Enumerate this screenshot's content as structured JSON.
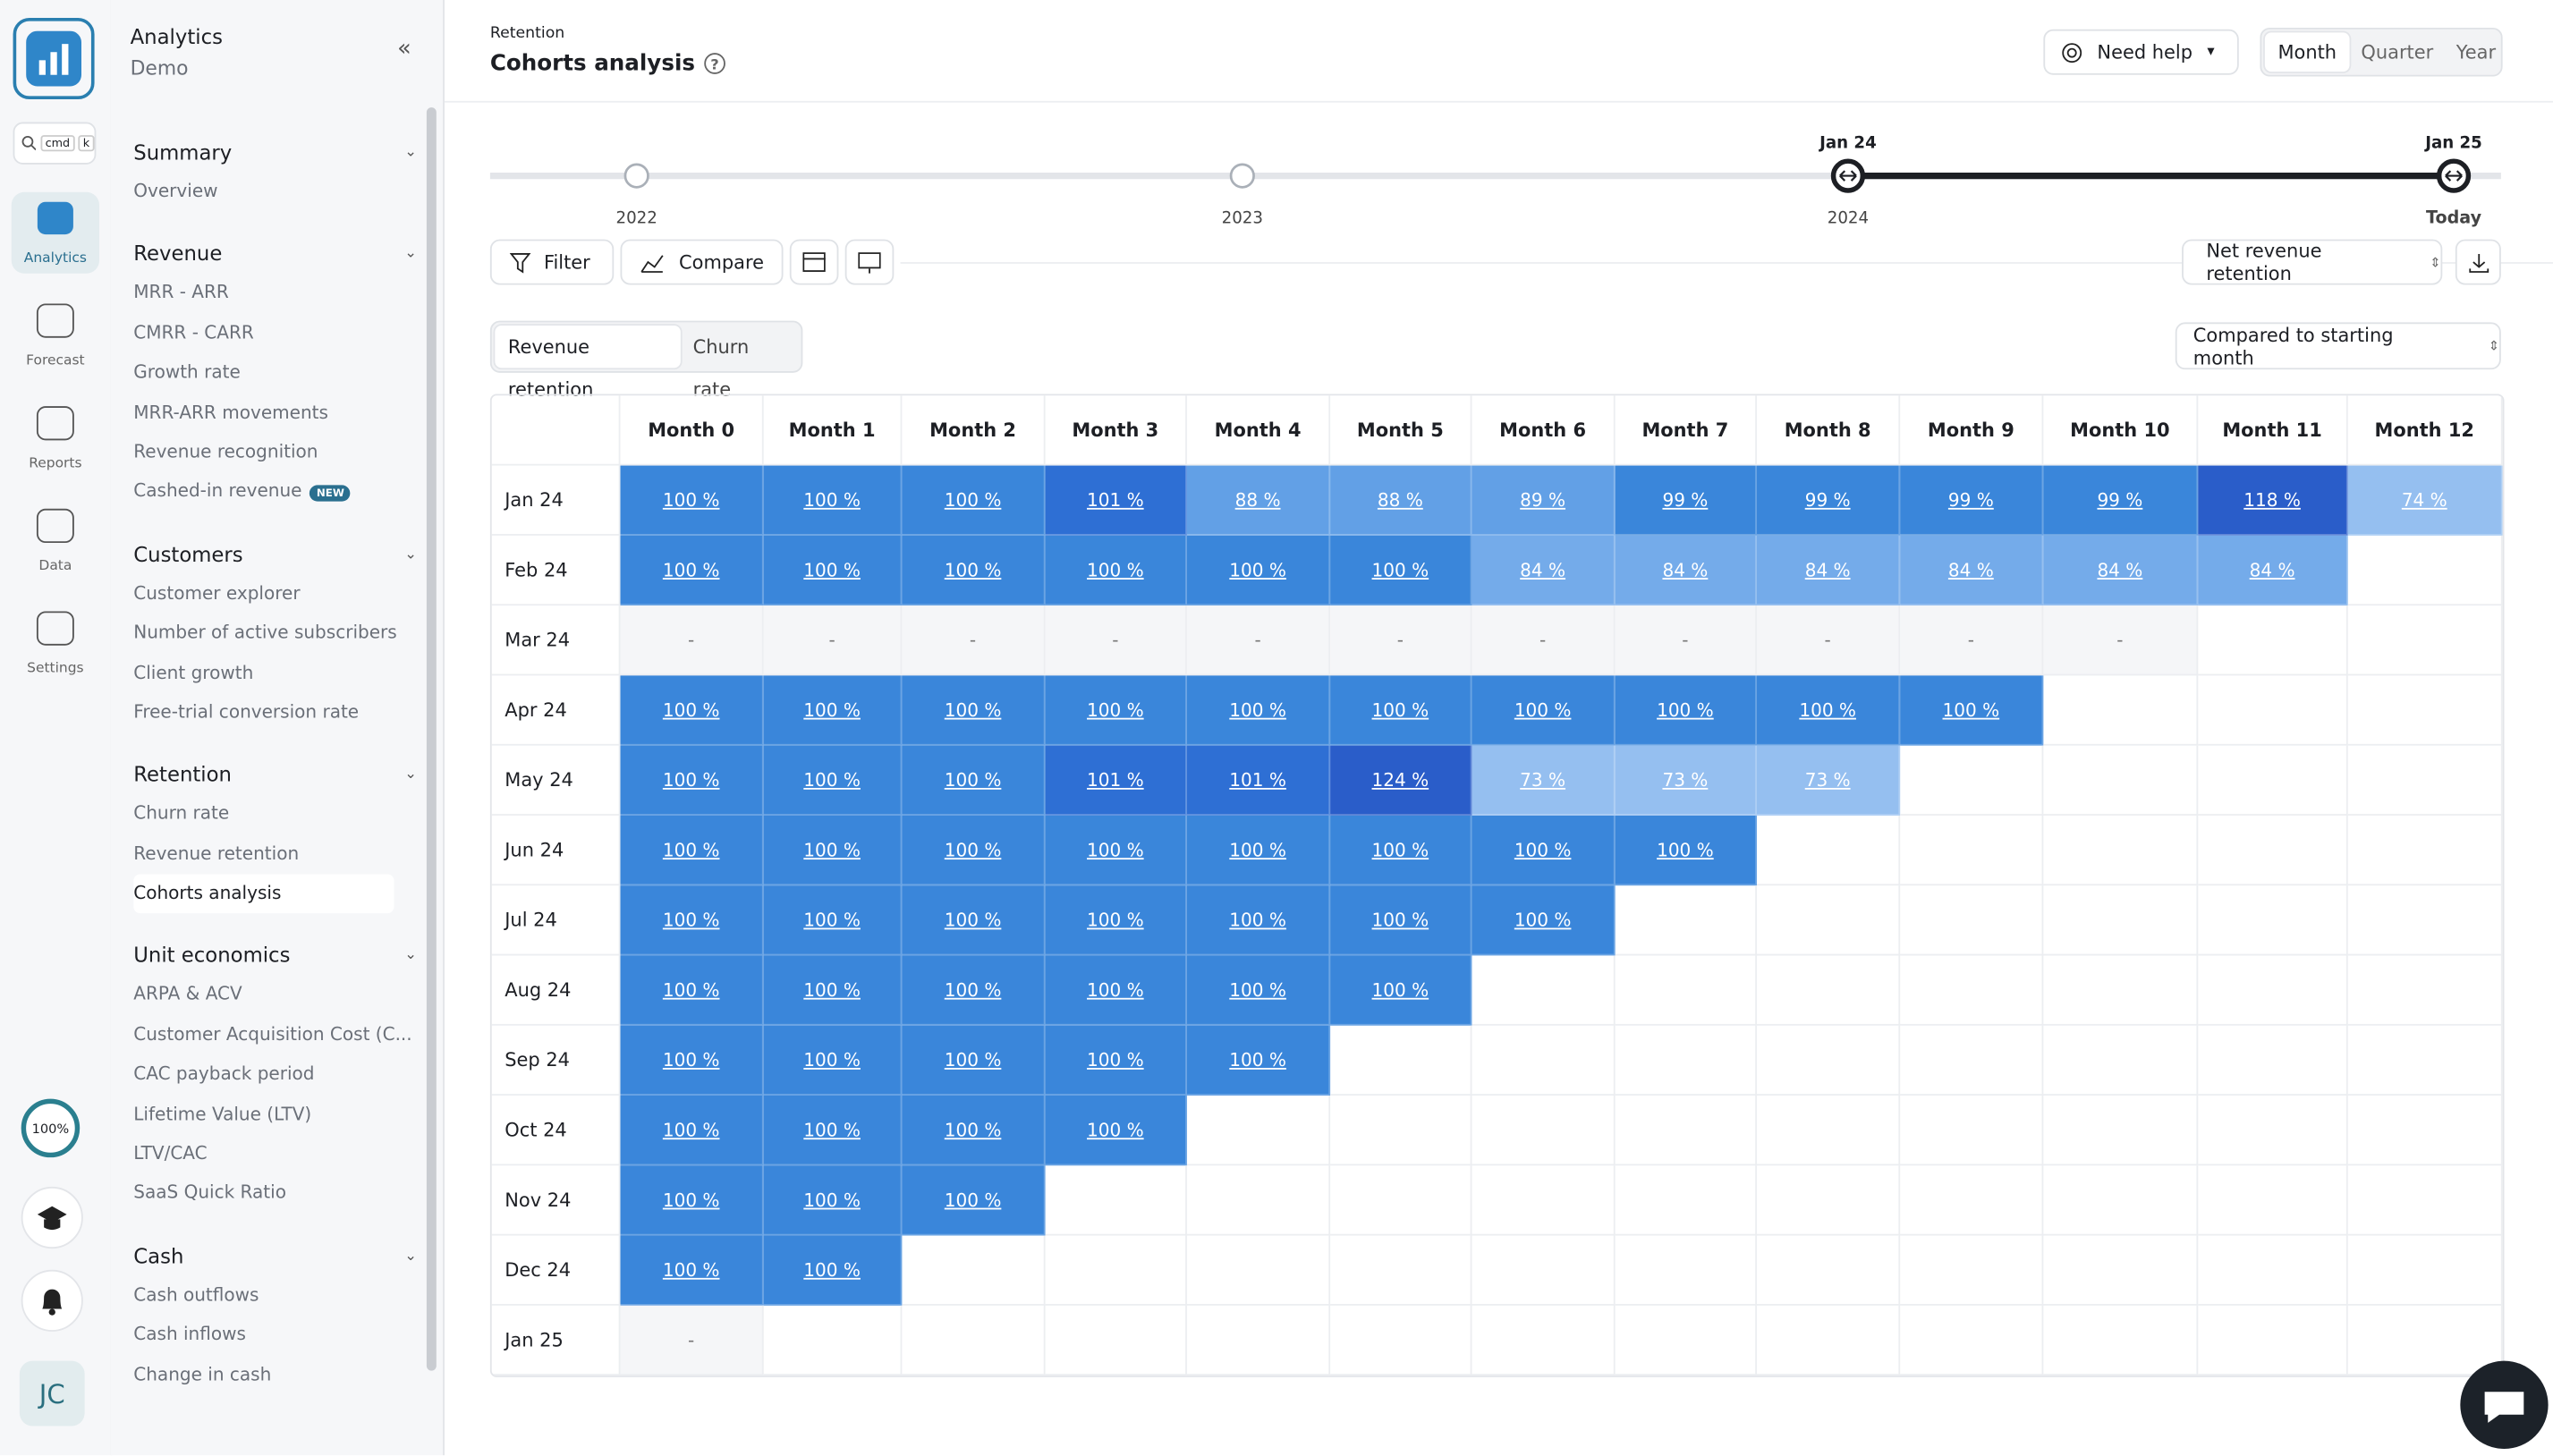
{
  "sidebar": {
    "app": {
      "title": "Analytics",
      "subtitle": "Demo"
    },
    "search_keys": [
      "cmd",
      "k"
    ],
    "rail": [
      "Analytics",
      "Forecast",
      "Reports",
      "Data",
      "Settings"
    ],
    "progress": "100%",
    "avatar": "JC",
    "sections": [
      {
        "title": "Summary",
        "items": [
          "Overview"
        ]
      },
      {
        "title": "Revenue",
        "items": [
          "MRR - ARR",
          "CMRR - CARR",
          "Growth rate",
          "MRR-ARR movements",
          "Revenue recognition",
          "Cashed-in revenue"
        ],
        "badge": "NEW"
      },
      {
        "title": "Customers",
        "items": [
          "Customer explorer",
          "Number of active subscribers",
          "Client growth",
          "Free-trial conversion rate"
        ]
      },
      {
        "title": "Retention",
        "items": [
          "Churn rate",
          "Revenue retention",
          "Cohorts analysis"
        ]
      },
      {
        "title": "Unit economics",
        "items": [
          "ARPA & ACV",
          "Customer Acquisition Cost (C...",
          "CAC payback period",
          "Lifetime Value (LTV)",
          "LTV/CAC",
          "SaaS Quick Ratio"
        ]
      },
      {
        "title": "Cash",
        "items": [
          "Cash outflows",
          "Cash inflows",
          "Change in cash"
        ]
      }
    ]
  },
  "header": {
    "breadcrumb": "Retention",
    "title": "Cohorts analysis",
    "help": "Need help",
    "periods": [
      "Month",
      "Quarter",
      "Year"
    ]
  },
  "timeline": {
    "labels": [
      "2022",
      "2023",
      "2024",
      "Today"
    ],
    "markers": [
      "Jan 24",
      "Jan 25"
    ]
  },
  "toolbar": {
    "filter": "Filter",
    "compare": "Compare",
    "metric": "Net revenue retention"
  },
  "tabs": [
    "Revenue retention",
    "Churn rate"
  ],
  "comparison": "Compared to starting month",
  "table": {
    "columns": [
      "Month 0",
      "Month 1",
      "Month 2",
      "Month 3",
      "Month 4",
      "Month 5",
      "Month 6",
      "Month 7",
      "Month 8",
      "Month 9",
      "Month 10",
      "Month 11",
      "Month 12"
    ],
    "rows": [
      {
        "label": "Jan 24",
        "cells": [
          "100 %",
          "100 %",
          "100 %",
          "101 %",
          "88 %",
          "88 %",
          "89 %",
          "99 %",
          "99 %",
          "99 %",
          "99 %",
          "118 %",
          "74 %"
        ]
      },
      {
        "label": "Feb 24",
        "cells": [
          "100 %",
          "100 %",
          "100 %",
          "100 %",
          "100 %",
          "100 %",
          "84 %",
          "84 %",
          "84 %",
          "84 %",
          "84 %",
          "84 %"
        ]
      },
      {
        "label": "Mar 24",
        "cells": [
          "-",
          "-",
          "-",
          "-",
          "-",
          "-",
          "-",
          "-",
          "-",
          "-",
          "-"
        ]
      },
      {
        "label": "Apr 24",
        "cells": [
          "100 %",
          "100 %",
          "100 %",
          "100 %",
          "100 %",
          "100 %",
          "100 %",
          "100 %",
          "100 %",
          "100 %"
        ]
      },
      {
        "label": "May 24",
        "cells": [
          "100 %",
          "100 %",
          "100 %",
          "101 %",
          "101 %",
          "124 %",
          "73 %",
          "73 %",
          "73 %"
        ]
      },
      {
        "label": "Jun 24",
        "cells": [
          "100 %",
          "100 %",
          "100 %",
          "100 %",
          "100 %",
          "100 %",
          "100 %",
          "100 %"
        ]
      },
      {
        "label": "Jul 24",
        "cells": [
          "100 %",
          "100 %",
          "100 %",
          "100 %",
          "100 %",
          "100 %",
          "100 %"
        ]
      },
      {
        "label": "Aug 24",
        "cells": [
          "100 %",
          "100 %",
          "100 %",
          "100 %",
          "100 %",
          "100 %"
        ]
      },
      {
        "label": "Sep 24",
        "cells": [
          "100 %",
          "100 %",
          "100 %",
          "100 %",
          "100 %"
        ]
      },
      {
        "label": "Oct 24",
        "cells": [
          "100 %",
          "100 %",
          "100 %",
          "100 %"
        ]
      },
      {
        "label": "Nov 24",
        "cells": [
          "100 %",
          "100 %",
          "100 %"
        ]
      },
      {
        "label": "Dec 24",
        "cells": [
          "100 %",
          "100 %"
        ]
      },
      {
        "label": "Jan 25",
        "cells": [
          "-"
        ]
      }
    ]
  }
}
